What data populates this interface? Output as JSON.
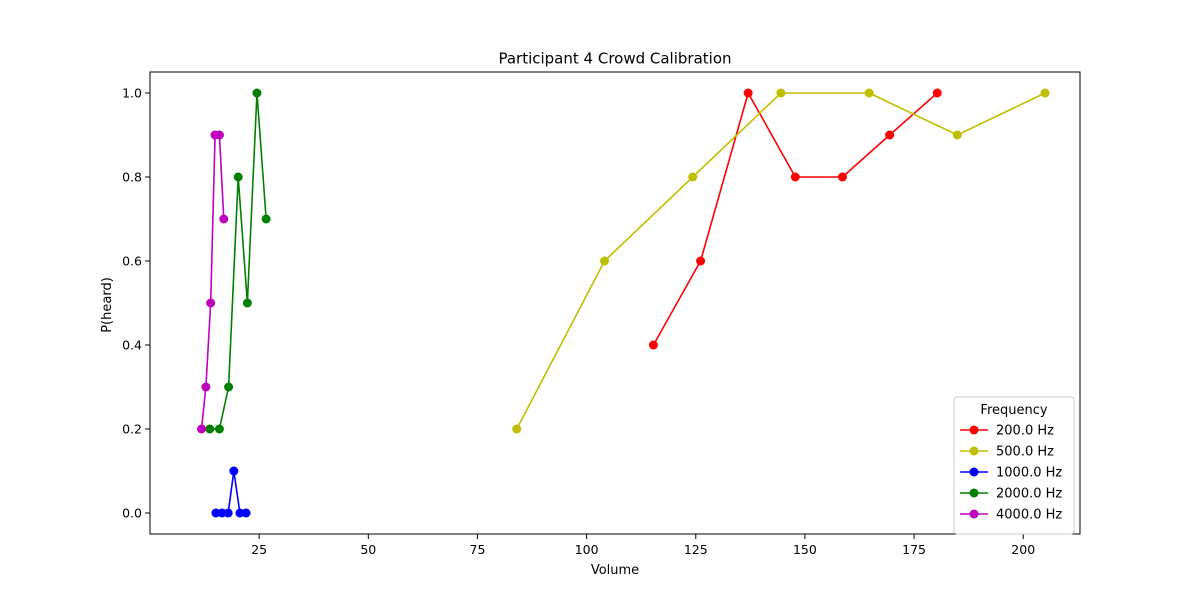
{
  "chart_data": {
    "type": "line",
    "title": "Participant 4 Crowd Calibration",
    "xlabel": "Volume",
    "ylabel": "P(heard)",
    "xlim": [
      0,
      213
    ],
    "ylim": [
      -0.05,
      1.05
    ],
    "xticks": [
      25,
      50,
      75,
      100,
      125,
      150,
      175,
      200
    ],
    "yticks": [
      0.0,
      0.2,
      0.4,
      0.6,
      0.8,
      1.0
    ],
    "xtick_labels": [
      "25",
      "50",
      "75",
      "100",
      "125",
      "150",
      "175",
      "200"
    ],
    "ytick_labels": [
      "0.0",
      "0.2",
      "0.4",
      "0.6",
      "0.8",
      "1.0"
    ],
    "grid": false,
    "legend": {
      "title": "Frequency",
      "placement": "lower-right"
    },
    "series": [
      {
        "name": "200.0 Hz",
        "color": "#ff0000",
        "x": [
          115.3,
          126.1,
          137.0,
          147.8,
          158.6,
          169.4,
          180.3
        ],
        "y": [
          0.4,
          0.6,
          1.0,
          0.8,
          0.8,
          0.9,
          1.0
        ]
      },
      {
        "name": "500.0 Hz",
        "color": "#bfbf00",
        "x": [
          84.0,
          104.1,
          124.3,
          144.5,
          164.7,
          184.9,
          205.0
        ],
        "y": [
          0.2,
          0.6,
          0.8,
          1.0,
          1.0,
          0.9,
          1.0
        ]
      },
      {
        "name": "1000.0 Hz",
        "color": "#0000ff",
        "x": [
          15.1,
          16.5,
          17.9,
          19.2,
          20.6,
          22.0
        ],
        "y": [
          0.0,
          0.0,
          0.0,
          0.1,
          0.0,
          0.0
        ]
      },
      {
        "name": "2000.0 Hz",
        "color": "#008000",
        "x": [
          13.7,
          15.9,
          18.0,
          20.2,
          22.3,
          24.5,
          26.6
        ],
        "y": [
          0.2,
          0.2,
          0.3,
          0.8,
          0.5,
          1.0,
          0.7
        ]
      },
      {
        "name": "4000.0 Hz",
        "color": "#bf00bf",
        "x": [
          11.8,
          12.8,
          13.9,
          14.9,
          15.9,
          16.9
        ],
        "y": [
          0.2,
          0.3,
          0.5,
          0.9,
          0.9,
          0.7
        ]
      }
    ]
  }
}
